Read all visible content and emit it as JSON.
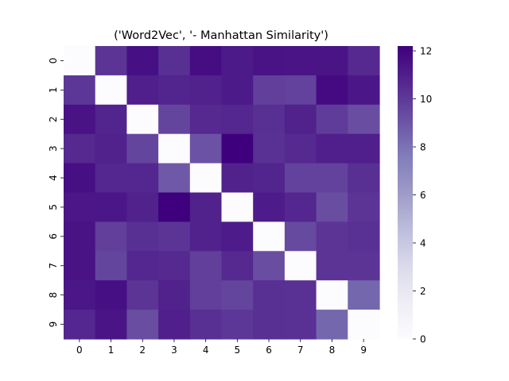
{
  "chart_data": {
    "type": "heatmap",
    "title": "('Word2Vec', '- Manhattan Similarity')",
    "xlabel": "",
    "ylabel": "",
    "x_categories": [
      "0",
      "1",
      "2",
      "3",
      "4",
      "5",
      "6",
      "7",
      "8",
      "9"
    ],
    "y_categories": [
      "0",
      "1",
      "2",
      "3",
      "4",
      "5",
      "6",
      "7",
      "8",
      "9"
    ],
    "colormap": "Purples",
    "colorbar": {
      "min": 0,
      "max": 12.2,
      "ticks": [
        0,
        2,
        4,
        6,
        8,
        10,
        12
      ]
    },
    "grid": false,
    "values": [
      [
        0.0,
        10.2,
        11.6,
        10.4,
        11.7,
        11.2,
        11.5,
        11.4,
        11.4,
        10.6
      ],
      [
        10.1,
        0.0,
        11.0,
        10.8,
        10.9,
        11.2,
        9.8,
        9.7,
        11.8,
        11.3
      ],
      [
        11.5,
        10.8,
        0.0,
        9.6,
        10.6,
        10.7,
        10.4,
        10.9,
        9.9,
        9.3
      ],
      [
        10.6,
        10.9,
        9.6,
        0.0,
        9.1,
        12.2,
        10.3,
        10.6,
        11.0,
        11.0
      ],
      [
        11.6,
        10.7,
        10.7,
        8.9,
        0.0,
        10.9,
        10.8,
        9.7,
        9.7,
        10.4
      ],
      [
        11.3,
        11.3,
        10.9,
        12.2,
        10.9,
        0.0,
        11.1,
        10.7,
        9.3,
        10.2
      ],
      [
        11.5,
        9.8,
        10.4,
        10.2,
        10.9,
        11.1,
        0.0,
        9.4,
        10.2,
        10.3
      ],
      [
        11.5,
        9.6,
        10.7,
        10.6,
        9.8,
        10.6,
        9.3,
        0.0,
        10.2,
        10.2
      ],
      [
        11.3,
        11.6,
        10.2,
        10.9,
        9.8,
        9.6,
        10.4,
        10.3,
        0.0,
        8.4
      ],
      [
        10.7,
        11.4,
        9.3,
        11.0,
        10.4,
        10.1,
        10.4,
        10.3,
        8.4,
        0.0
      ]
    ]
  }
}
